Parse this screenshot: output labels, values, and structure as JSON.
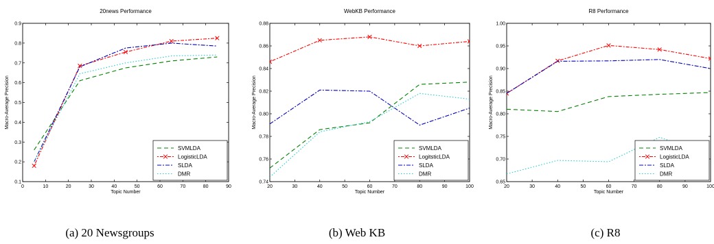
{
  "chart_data": [
    {
      "type": "line",
      "title": "20news Performance",
      "xlabel": "Topic Number",
      "ylabel": "Macro-Average Precision",
      "xlim": [
        0,
        90
      ],
      "ylim": [
        0.1,
        0.9
      ],
      "xticks": [
        "0",
        "10",
        "20",
        "30",
        "40",
        "50",
        "60",
        "70",
        "80",
        "90"
      ],
      "yticks": [
        "0.1",
        "0.2",
        "0.3",
        "0.4",
        "0.5",
        "0.6",
        "0.7",
        "0.8",
        "0.9"
      ],
      "grid": false,
      "legend_position": "lower-right",
      "caption": "(a) 20 Newsgroups",
      "series": [
        {
          "name": "SVMLDA",
          "x": [
            5,
            25,
            45,
            65,
            85
          ],
          "values": [
            0.26,
            0.61,
            0.675,
            0.71,
            0.73
          ]
        },
        {
          "name": "LogisticLDA",
          "x": [
            5,
            25,
            45,
            65,
            85
          ],
          "values": [
            0.18,
            0.685,
            0.755,
            0.81,
            0.825
          ]
        },
        {
          "name": "SLDA",
          "x": [
            5,
            25,
            45,
            65,
            85
          ],
          "values": [
            0.2,
            0.68,
            0.775,
            0.8,
            0.785
          ]
        },
        {
          "name": "DMR",
          "x": [
            5,
            25,
            45,
            65,
            85
          ],
          "values": [
            0.2,
            0.645,
            0.7,
            0.735,
            0.74
          ]
        }
      ]
    },
    {
      "type": "line",
      "title": "WebKB Performance",
      "xlabel": "Topic Number",
      "ylabel": "Macro-Average Precision",
      "xlim": [
        20,
        100
      ],
      "ylim": [
        0.74,
        0.88
      ],
      "xticks": [
        "20",
        "30",
        "40",
        "50",
        "60",
        "70",
        "80",
        "90",
        "100"
      ],
      "yticks": [
        "0.74",
        "0.76",
        "0.78",
        "0.80",
        "0.82",
        "0.84",
        "0.86",
        "0.88"
      ],
      "grid": false,
      "legend_position": "lower-right",
      "caption": "(b) Web KB",
      "series": [
        {
          "name": "SVMLDA",
          "x": [
            20,
            40,
            60,
            80,
            100
          ],
          "values": [
            0.752,
            0.786,
            0.792,
            0.826,
            0.828
          ]
        },
        {
          "name": "LogitsticLDA",
          "x": [
            20,
            40,
            60,
            80,
            100
          ],
          "values": [
            0.846,
            0.865,
            0.868,
            0.86,
            0.864
          ]
        },
        {
          "name": "SLDA",
          "x": [
            20,
            40,
            60,
            80,
            100
          ],
          "values": [
            0.791,
            0.821,
            0.82,
            0.79,
            0.805
          ]
        },
        {
          "name": "DMR",
          "x": [
            20,
            40,
            60,
            80,
            100
          ],
          "values": [
            0.744,
            0.784,
            0.793,
            0.818,
            0.813
          ]
        }
      ]
    },
    {
      "type": "line",
      "title": "R8 Performance",
      "xlabel": "Topic Number",
      "ylabel": "Macro-Average Precision",
      "xlim": [
        20,
        100
      ],
      "ylim": [
        0.65,
        1.0
      ],
      "xticks": [
        "20",
        "30",
        "40",
        "50",
        "60",
        "70",
        "80",
        "90",
        "100"
      ],
      "yticks": [
        "0.65",
        "0.70",
        "0.75",
        "0.80",
        "0.85",
        "0.90",
        "0.95",
        "1.00"
      ],
      "grid": false,
      "legend_position": "lower-right",
      "caption": "(c) R8",
      "series": [
        {
          "name": "SVMLDA",
          "x": [
            20,
            40,
            60,
            80,
            100
          ],
          "values": [
            0.81,
            0.805,
            0.838,
            0.843,
            0.847
          ]
        },
        {
          "name": "LogisticLDA",
          "x": [
            20,
            40,
            60,
            80,
            100
          ],
          "values": [
            0.845,
            0.917,
            0.951,
            0.942,
            0.922
          ]
        },
        {
          "name": "SLDA",
          "x": [
            20,
            40,
            60,
            80,
            100
          ],
          "values": [
            0.845,
            0.916,
            0.917,
            0.92,
            0.9
          ]
        },
        {
          "name": "DMR",
          "x": [
            20,
            40,
            60,
            80,
            100
          ],
          "values": [
            0.667,
            0.697,
            0.694,
            0.748,
            0.71
          ]
        }
      ]
    }
  ],
  "styles": {
    "series_colors": [
      "#008000",
      "#ff0000",
      "#0000bb",
      "#22cccc"
    ],
    "series_dashes": [
      "6,4",
      "2,2,5,2",
      "6,2,2,2",
      "1.5,2.5"
    ],
    "marker_color": "#ff0000"
  }
}
